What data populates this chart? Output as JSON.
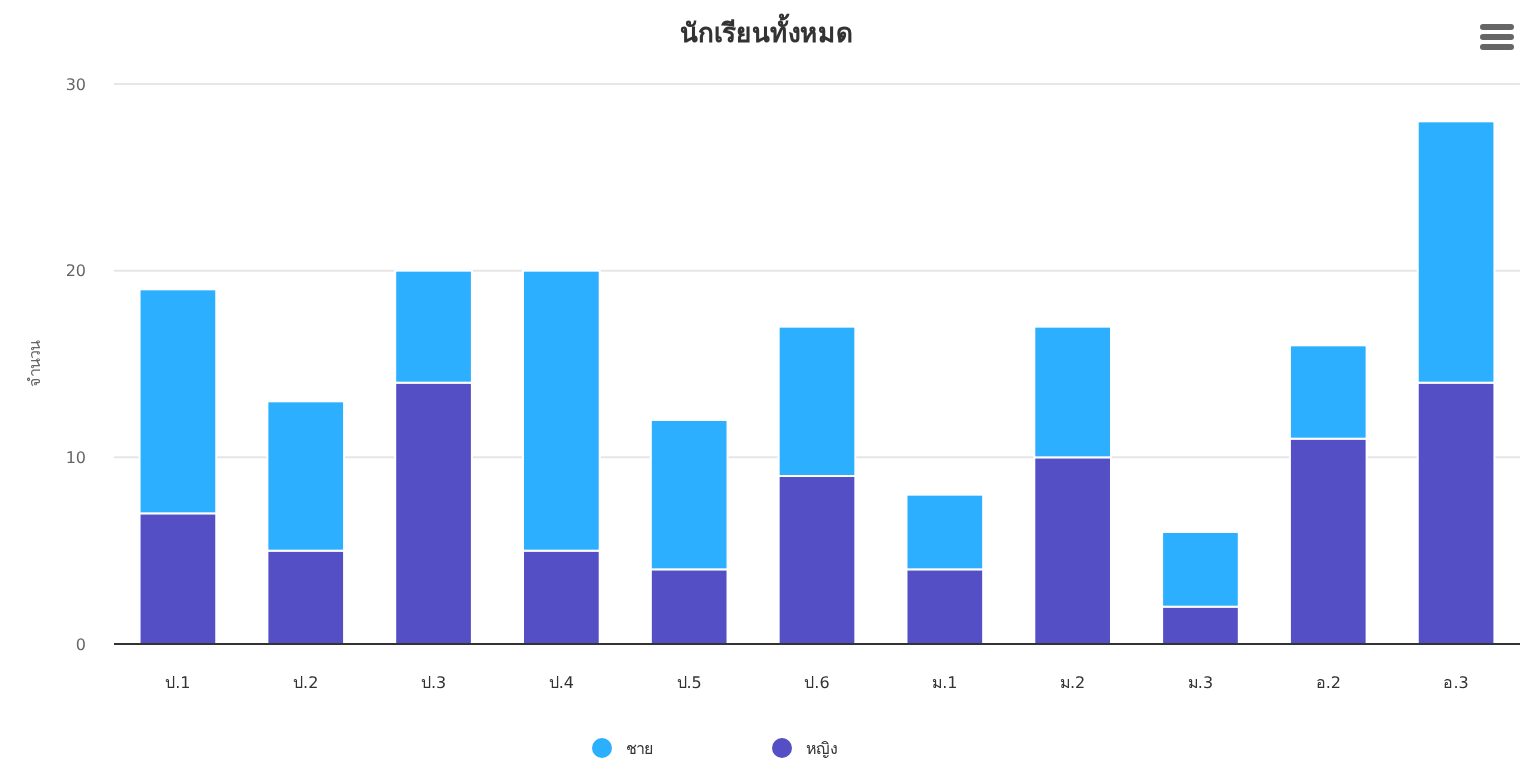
{
  "chart_data": {
    "type": "bar",
    "title": "นักเรียนทั้งหมด",
    "ylabel": "จำนวน",
    "categories": [
      "ป.1",
      "ป.2",
      "ป.3",
      "ป.4",
      "ป.5",
      "ป.6",
      "ม.1",
      "ม.2",
      "ม.3",
      "อ.2",
      "อ.3"
    ],
    "series": [
      {
        "name": "หญิง",
        "color": "#544fc5",
        "values": [
          7,
          5,
          14,
          5,
          4,
          9,
          4,
          10,
          2,
          11,
          14
        ]
      },
      {
        "name": "ชาย",
        "color": "#2caffe",
        "values": [
          12,
          8,
          6,
          15,
          8,
          8,
          4,
          7,
          4,
          5,
          14
        ]
      }
    ],
    "stacked": true,
    "ylim": [
      0,
      30
    ],
    "yticks": [
      0,
      10,
      20,
      30
    ],
    "grid": "y",
    "legend": "bottom"
  }
}
